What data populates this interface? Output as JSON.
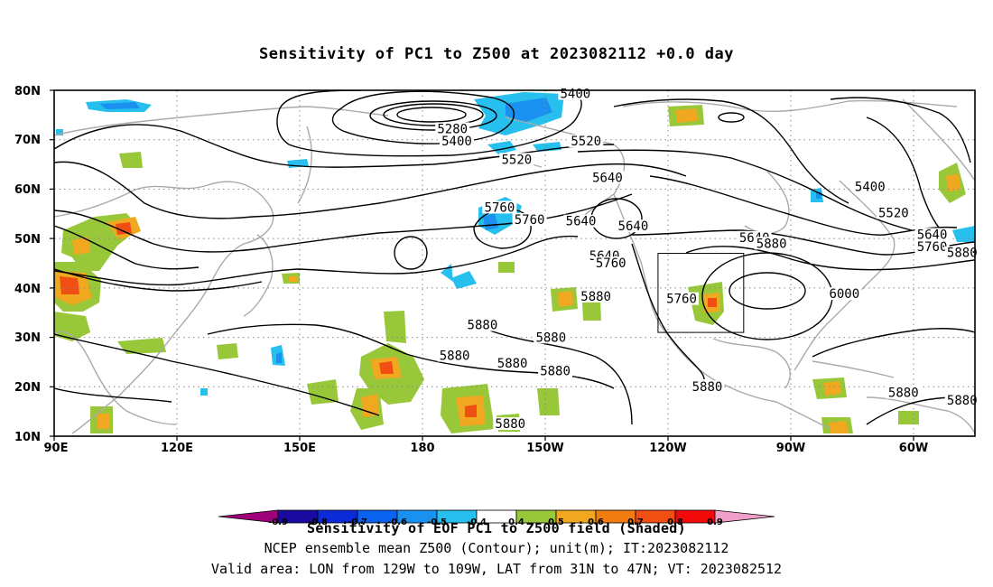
{
  "title": "Sensitivity of PC1 to Z500 at 2023082112 +0.0 day",
  "map": {
    "lat_labels": [
      "80N",
      "70N",
      "60N",
      "50N",
      "40N",
      "30N",
      "20N",
      "10N"
    ],
    "lon_labels": [
      "90E",
      "120E",
      "150E",
      "180",
      "150W",
      "120W",
      "90W",
      "60W"
    ],
    "contour_labels": [
      {
        "text": "5400",
        "lon": -148.3,
        "lat": 78.8
      },
      {
        "text": "5280",
        "lon": -177.0,
        "lat": 71.7
      },
      {
        "text": "5400",
        "lon": -176.0,
        "lat": 69.2
      },
      {
        "text": "5520",
        "lon": -145.8,
        "lat": 69.2
      },
      {
        "text": "5520",
        "lon": -162.0,
        "lat": 65.5
      },
      {
        "text": "5640",
        "lon": -140.8,
        "lat": 61.8
      },
      {
        "text": "5400",
        "lon": -79.5,
        "lat": 60.0
      },
      {
        "text": "5760",
        "lon": -166.0,
        "lat": 55.8
      },
      {
        "text": "5640",
        "lon": -147.0,
        "lat": 53.0
      },
      {
        "text": "5520",
        "lon": -74.0,
        "lat": 54.7
      },
      {
        "text": "5640",
        "lon": -65.0,
        "lat": 50.3
      },
      {
        "text": "5760",
        "lon": -65.0,
        "lat": 47.8
      },
      {
        "text": "5880",
        "lon": -58.0,
        "lat": 46.6
      },
      {
        "text": "5640",
        "lon": -134.8,
        "lat": 52.0
      },
      {
        "text": "5760",
        "lon": -159.0,
        "lat": 53.3
      },
      {
        "text": "5640",
        "lon": -106.5,
        "lat": 49.7
      },
      {
        "text": "5880",
        "lon": -102.5,
        "lat": 48.5
      },
      {
        "text": "5640",
        "lon": -141.5,
        "lat": 46.0
      },
      {
        "text": "5760",
        "lon": -140.0,
        "lat": 44.5
      },
      {
        "text": "6000",
        "lon": -85.5,
        "lat": 38.3
      },
      {
        "text": "5760",
        "lon": -123.5,
        "lat": 37.3
      },
      {
        "text": "5880",
        "lon": -143.5,
        "lat": 37.8
      },
      {
        "text": "5880",
        "lon": -154.0,
        "lat": 29.5
      },
      {
        "text": "5880",
        "lon": -170.0,
        "lat": 32.0
      },
      {
        "text": "5880",
        "lon": -153.0,
        "lat": 22.7
      },
      {
        "text": "5880",
        "lon": -117.5,
        "lat": 19.5
      },
      {
        "text": "5880",
        "lon": -176.5,
        "lat": 25.8
      },
      {
        "text": "5880",
        "lon": -163.0,
        "lat": 24.3
      },
      {
        "text": "5880",
        "lon": -163.5,
        "lat": 12.0
      },
      {
        "text": "5880",
        "lon": -71.7,
        "lat": 18.3
      },
      {
        "text": "5880",
        "lon": -58.0,
        "lat": 16.8
      }
    ],
    "valid_box": {
      "lon_min": -129,
      "lon_max": -109,
      "lat_min": 31,
      "lat_max": 47
    }
  },
  "colorbar": {
    "ticks": [
      "-0.9",
      "-0.8",
      "-0.7",
      "-0.6",
      "-0.5",
      "-0.4",
      "0.4",
      "0.5",
      "0.6",
      "0.7",
      "0.8",
      "0.9"
    ],
    "colors": [
      "#a0007a",
      "#1a0aa0",
      "#0c2ad8",
      "#0a62f0",
      "#1a90f0",
      "#27c0ee",
      "#ffffff",
      "#98c83a",
      "#f0a820",
      "#f07c12",
      "#f04e12",
      "#f00a0a",
      "#f0a0c8"
    ]
  },
  "captions": {
    "line1": "Sensitivity of EOF PC1 to Z500 field (Shaded)",
    "line2": "NCEP ensemble mean Z500 (Contour); unit(m); IT:2023082112",
    "line3": "Valid area: LON from 129W to 109W, LAT from 31N to 47N; VT: 2023082512"
  },
  "colors": {
    "coast": "#aaaaaa",
    "grid": "#888888",
    "positive_shade": "#98c83a",
    "positive_orange": "#f0a820",
    "positive_red": "#f04e12",
    "negative_shade": "#27c0ee",
    "negative_blue": "#1a90f0"
  }
}
